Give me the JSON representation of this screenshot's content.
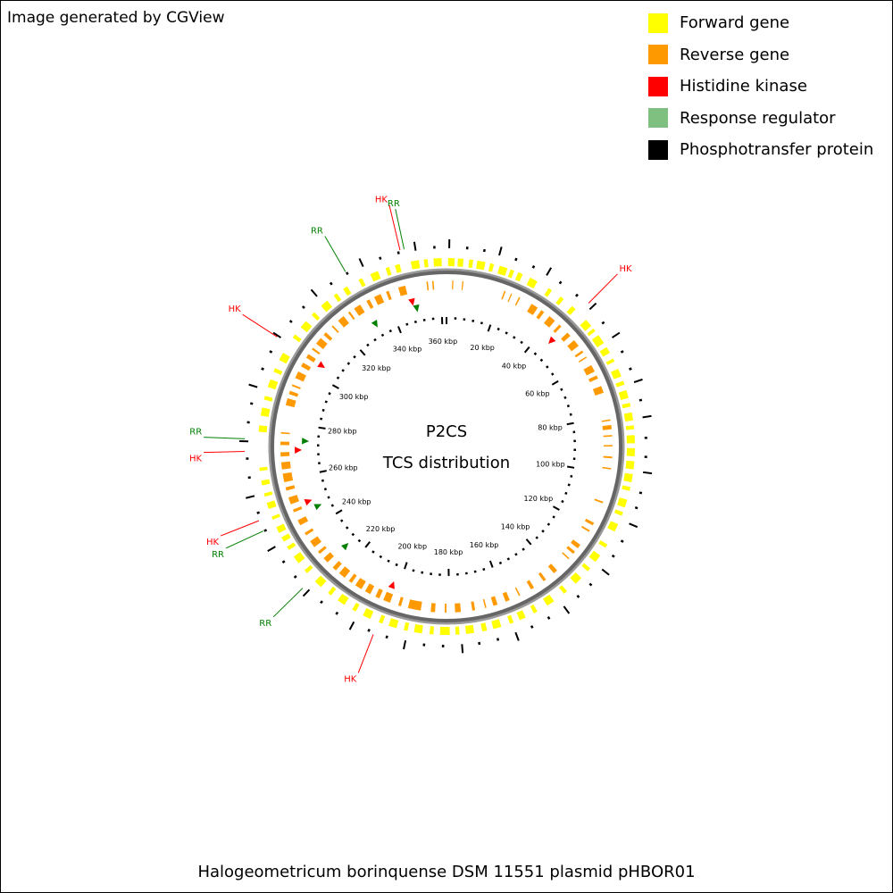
{
  "credit": "Image generated by CGView",
  "legend": [
    {
      "label": "Forward gene",
      "color": "#ffff00"
    },
    {
      "label": "Reverse gene",
      "color": "#ff9900"
    },
    {
      "label": "Histidine kinase",
      "color": "#ff0000"
    },
    {
      "label": "Response regulator",
      "color": "#7fbf7f"
    },
    {
      "label": "Phosphotransfer protein",
      "color": "#000000"
    }
  ],
  "center": {
    "line1": "P2CS",
    "line2": "TCS distribution"
  },
  "footer": "Halogeometricum borinquense DSM 11551 plasmid pHBOR01",
  "genome": {
    "length_kbp": 362
  },
  "ruler": {
    "major_interval_kbp": 20,
    "labels": [
      "20 kbp",
      "40 kbp",
      "60 kbp",
      "80 kbp",
      "100 kbp",
      "120 kbp",
      "140 kbp",
      "160 kbp",
      "180 kbp",
      "200 kbp",
      "220 kbp",
      "240 kbp",
      "260 kbp",
      "280 kbp",
      "300 kbp",
      "320 kbp",
      "340 kbp",
      "360 kbp"
    ]
  },
  "feature_labels": [
    {
      "text": "RR",
      "color": "#008000",
      "pos_kbp": 349.8
    },
    {
      "text": "HK",
      "color": "#ff0000",
      "pos_kbp": 348.6
    },
    {
      "text": "HK",
      "color": "#ff0000",
      "pos_kbp": 45.0
    },
    {
      "text": "RR",
      "color": "#008000",
      "pos_kbp": 331.8
    },
    {
      "text": "HK",
      "color": "#ff0000",
      "pos_kbp": 304.6
    },
    {
      "text": "RR",
      "color": "#008000",
      "pos_kbp": 273.7
    },
    {
      "text": "HK",
      "color": "#ff0000",
      "pos_kbp": 270.1
    },
    {
      "text": "HK",
      "color": "#ff0000",
      "pos_kbp": 249.8
    },
    {
      "text": "RR",
      "color": "#008000",
      "pos_kbp": 246.6
    },
    {
      "text": "RR",
      "color": "#008000",
      "pos_kbp": 226.7
    },
    {
      "text": "HK",
      "color": "#ff0000",
      "pos_kbp": 202.4
    }
  ],
  "tcs_markers": [
    {
      "type": "histidine-kinase",
      "pos_kbp": 348.6
    },
    {
      "type": "response-regulator",
      "pos_kbp": 349.8
    },
    {
      "type": "histidine-kinase",
      "pos_kbp": 45.0
    },
    {
      "type": "response-regulator",
      "pos_kbp": 331.8
    },
    {
      "type": "histidine-kinase",
      "pos_kbp": 304.6
    },
    {
      "type": "response-regulator",
      "pos_kbp": 273.7
    },
    {
      "type": "histidine-kinase",
      "pos_kbp": 270.1
    },
    {
      "type": "histidine-kinase",
      "pos_kbp": 249.8
    },
    {
      "type": "response-regulator",
      "pos_kbp": 246.6
    },
    {
      "type": "response-regulator",
      "pos_kbp": 226.7
    },
    {
      "type": "histidine-kinase",
      "pos_kbp": 202.4
    }
  ],
  "forward_genes": [
    [
      0.5,
      2.5
    ],
    [
      3.5,
      5.2
    ],
    [
      7.0,
      8.2
    ],
    [
      9.5,
      12.0
    ],
    [
      13.5,
      14.7
    ],
    [
      16.5,
      19.0
    ],
    [
      20.0,
      21.2
    ],
    [
      22.5,
      24.0
    ],
    [
      26.5,
      29.0
    ],
    [
      33.0,
      34.2
    ],
    [
      37.5,
      38.7
    ],
    [
      42.0,
      43.5
    ],
    [
      48.0,
      50.5
    ],
    [
      51.5,
      52.5
    ],
    [
      54.0,
      57.0
    ],
    [
      58.5,
      60.5
    ],
    [
      62.5,
      63.5
    ],
    [
      66.0,
      68.5
    ],
    [
      70.0,
      71.2
    ],
    [
      73.0,
      75.5
    ],
    [
      77.0,
      78.2
    ],
    [
      80.0,
      82.5
    ],
    [
      84.0,
      85.2
    ],
    [
      87.0,
      89.5
    ],
    [
      91.0,
      93.5
    ],
    [
      95.0,
      97.5
    ],
    [
      99.0,
      101.5
    ],
    [
      103.0,
      104.2
    ],
    [
      107.0,
      109.5
    ],
    [
      111.0,
      112.2
    ],
    [
      115.0,
      117.5
    ],
    [
      122.0,
      123.2
    ],
    [
      126.0,
      128.5
    ],
    [
      131.0,
      132.2
    ],
    [
      135.0,
      137.5
    ],
    [
      141.0,
      142.2
    ],
    [
      146.0,
      148.5
    ],
    [
      152.0,
      153.2
    ],
    [
      156.0,
      158.0
    ],
    [
      160.0,
      161.2
    ],
    [
      164.0,
      166.5
    ],
    [
      168.5,
      170.0
    ],
    [
      172.5,
      175.0
    ],
    [
      177.0,
      178.2
    ],
    [
      180.0,
      183.0
    ],
    [
      185.0,
      186.2
    ],
    [
      188.5,
      191.0
    ],
    [
      193.0,
      194.2
    ],
    [
      196.5,
      199.0
    ],
    [
      201.0,
      202.2
    ],
    [
      205.0,
      207.5
    ],
    [
      210.0,
      211.2
    ],
    [
      214.0,
      216.5
    ],
    [
      219.0,
      220.2
    ],
    [
      223.0,
      225.5
    ],
    [
      229.0,
      230.2
    ],
    [
      233.0,
      235.5
    ],
    [
      238.0,
      239.2
    ],
    [
      241.0,
      242.5
    ],
    [
      244.0,
      246.0
    ],
    [
      248.5,
      249.5
    ],
    [
      252.0,
      254.0
    ],
    [
      256.0,
      257.0
    ],
    [
      259.5,
      261.0
    ],
    [
      264.0,
      265.0
    ],
    [
      276.0,
      278.0
    ],
    [
      281.0,
      283.5
    ],
    [
      286.0,
      287.2
    ],
    [
      290.0,
      292.5
    ],
    [
      295.0,
      296.2
    ],
    [
      299.0,
      301.5
    ],
    [
      307.0,
      308.2
    ],
    [
      311.0,
      313.5
    ],
    [
      316.0,
      317.2
    ],
    [
      320.0,
      322.5
    ],
    [
      325.0,
      326.2
    ],
    [
      328.5,
      330.0
    ],
    [
      334.0,
      335.2
    ],
    [
      338.0,
      340.5
    ],
    [
      343.0,
      344.2
    ],
    [
      346.0,
      347.5
    ],
    [
      351.0,
      353.5
    ],
    [
      355.0,
      356.2
    ],
    [
      358.0,
      360.5
    ]
  ],
  "reverse_genes": [
    [
      2.0,
      2.4
    ],
    [
      5.5,
      5.9
    ],
    [
      20.5,
      21.0
    ],
    [
      23.0,
      23.4
    ],
    [
      26.0,
      26.5
    ],
    [
      31.0,
      33.5
    ],
    [
      35.0,
      36.2
    ],
    [
      38.5,
      41.0
    ],
    [
      43.0,
      44.0
    ],
    [
      47.0,
      48.5
    ],
    [
      50.5,
      53.0
    ],
    [
      55.0,
      55.8
    ],
    [
      57.5,
      58.0
    ],
    [
      61.0,
      63.5
    ],
    [
      65.0,
      66.2
    ],
    [
      69.0,
      71.5
    ],
    [
      81.0,
      81.5
    ],
    [
      83.0,
      84.5
    ],
    [
      86.5,
      87.0
    ],
    [
      90.0,
      90.5
    ],
    [
      94.0,
      94.6
    ],
    [
      98.0,
      98.5
    ],
    [
      110.0,
      110.6
    ],
    [
      118.0,
      119.0
    ],
    [
      121.0,
      121.6
    ],
    [
      127.0,
      128.5
    ],
    [
      130.0,
      131.0
    ],
    [
      133.0,
      133.5
    ],
    [
      139.0,
      140.5
    ],
    [
      144.0,
      145.0
    ],
    [
      149.0,
      150.2
    ],
    [
      154.5,
      155.0
    ],
    [
      158.5,
      160.0
    ],
    [
      163.0,
      164.5
    ],
    [
      167.0,
      167.5
    ],
    [
      171.0,
      172.0
    ],
    [
      176.0,
      178.0
    ],
    [
      181.0,
      181.6
    ],
    [
      185.0,
      186.5
    ],
    [
      190.0,
      194.5
    ],
    [
      197.0,
      198.0
    ],
    [
      201.0,
      203.5
    ],
    [
      205.0,
      206.5
    ],
    [
      208.5,
      210.5
    ],
    [
      212.0,
      214.5
    ],
    [
      216.0,
      217.2
    ],
    [
      219.0,
      221.5
    ],
    [
      223.0,
      224.5
    ],
    [
      227.0,
      229.0
    ],
    [
      231.0,
      232.0
    ],
    [
      234.0,
      236.5
    ],
    [
      239.0,
      240.0
    ],
    [
      243.0,
      245.0
    ],
    [
      248.0,
      249.0
    ],
    [
      251.0,
      253.5
    ],
    [
      256.0,
      257.2
    ],
    [
      259.0,
      262.0
    ],
    [
      263.5,
      266.0
    ],
    [
      268.0,
      269.5
    ],
    [
      272.0,
      273.2
    ],
    [
      276.0,
      276.5
    ],
    [
      286.0,
      288.5
    ],
    [
      290.0,
      291.2
    ],
    [
      293.0,
      293.6
    ],
    [
      296.0,
      298.5
    ],
    [
      300.5,
      302.0
    ],
    [
      304.0,
      305.5
    ],
    [
      307.5,
      308.2
    ],
    [
      310.0,
      312.5
    ],
    [
      314.0,
      315.2
    ],
    [
      318.0,
      318.6
    ],
    [
      321.0,
      323.5
    ],
    [
      325.5,
      326.2
    ],
    [
      328.0,
      330.5
    ],
    [
      333.0,
      334.2
    ],
    [
      336.0,
      338.5
    ],
    [
      340.5,
      341.5
    ],
    [
      345.0,
      347.5
    ],
    [
      355.0,
      355.5
    ],
    [
      357.0,
      357.5
    ]
  ],
  "outer_ticks": [
    [
      0.8,
      "long"
    ],
    [
      6.0,
      "short"
    ],
    [
      11.0,
      "short"
    ],
    [
      15.5,
      "long"
    ],
    [
      20.5,
      "short"
    ],
    [
      26.0,
      "short"
    ],
    [
      30.5,
      "long"
    ],
    [
      35.0,
      "short"
    ],
    [
      41.0,
      "short"
    ],
    [
      46.5,
      "long"
    ],
    [
      52.0,
      "short"
    ],
    [
      57.0,
      "long"
    ],
    [
      62.0,
      "short"
    ],
    [
      67.5,
      "short"
    ],
    [
      71.5,
      "long"
    ],
    [
      77.0,
      "short"
    ],
    [
      82.0,
      "long"
    ],
    [
      88.0,
      "short"
    ],
    [
      93.5,
      "short"
    ],
    [
      98.0,
      "long"
    ],
    [
      104.0,
      "short"
    ],
    [
      108.5,
      "short"
    ],
    [
      113.5,
      "long"
    ],
    [
      119.0,
      "short"
    ],
    [
      124.0,
      "short"
    ],
    [
      129.0,
      "long"
    ],
    [
      134.5,
      "short"
    ],
    [
      139.5,
      "short"
    ],
    [
      144.5,
      "long"
    ],
    [
      150.0,
      "short"
    ],
    [
      155.5,
      "short"
    ],
    [
      160.5,
      "long"
    ],
    [
      166.0,
      "short"
    ],
    [
      171.5,
      "short"
    ],
    [
      176.5,
      "long"
    ],
    [
      182.0,
      "short"
    ],
    [
      187.5,
      "short"
    ],
    [
      193.0,
      "long"
    ],
    [
      198.5,
      "short"
    ],
    [
      204.0,
      "short"
    ],
    [
      209.0,
      "long"
    ],
    [
      214.5,
      "short"
    ],
    [
      220.0,
      "short"
    ],
    [
      225.0,
      "long"
    ],
    [
      230.5,
      "short"
    ],
    [
      236.0,
      "short"
    ],
    [
      241.0,
      "long"
    ],
    [
      246.5,
      "short"
    ],
    [
      252.0,
      "short"
    ],
    [
      257.0,
      "long"
    ],
    [
      262.5,
      "short"
    ],
    [
      268.0,
      "short"
    ],
    [
      273.0,
      "long"
    ],
    [
      278.5,
      "short"
    ],
    [
      284.0,
      "short"
    ],
    [
      289.0,
      "long"
    ],
    [
      294.5,
      "short"
    ],
    [
      300.0,
      "short"
    ],
    [
      305.0,
      "long"
    ],
    [
      310.5,
      "short"
    ],
    [
      316.0,
      "short"
    ],
    [
      321.0,
      "long"
    ],
    [
      326.5,
      "short"
    ],
    [
      332.0,
      "short"
    ],
    [
      337.0,
      "long"
    ],
    [
      342.5,
      "short"
    ],
    [
      348.0,
      "short"
    ],
    [
      353.0,
      "long"
    ],
    [
      358.5,
      "short"
    ]
  ]
}
